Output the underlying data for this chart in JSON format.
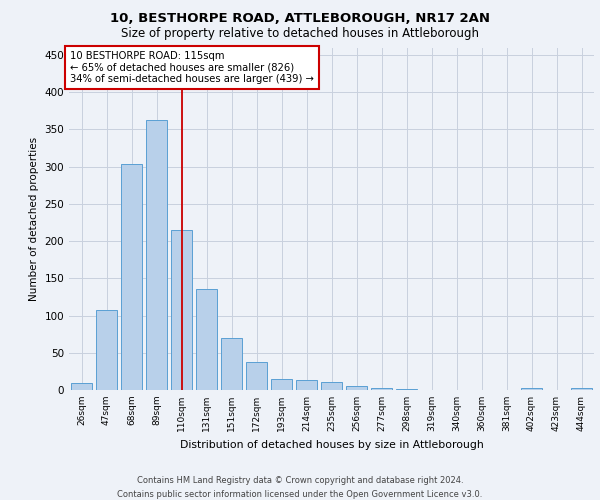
{
  "title_line1": "10, BESTHORPE ROAD, ATTLEBOROUGH, NR17 2AN",
  "title_line2": "Size of property relative to detached houses in Attleborough",
  "xlabel": "Distribution of detached houses by size in Attleborough",
  "ylabel": "Number of detached properties",
  "categories": [
    "26sqm",
    "47sqm",
    "68sqm",
    "89sqm",
    "110sqm",
    "131sqm",
    "151sqm",
    "172sqm",
    "193sqm",
    "214sqm",
    "235sqm",
    "256sqm",
    "277sqm",
    "298sqm",
    "319sqm",
    "340sqm",
    "360sqm",
    "381sqm",
    "402sqm",
    "423sqm",
    "444sqm"
  ],
  "values": [
    10,
    107,
    303,
    362,
    215,
    136,
    70,
    38,
    15,
    13,
    11,
    5,
    3,
    1,
    0,
    0,
    0,
    0,
    3,
    0,
    3
  ],
  "bar_color": "#b8d0ea",
  "bar_edge_color": "#5a9fd4",
  "vline_color": "#cc0000",
  "vline_x": 4,
  "annotation_text": "10 BESTHORPE ROAD: 115sqm\n← 65% of detached houses are smaller (826)\n34% of semi-detached houses are larger (439) →",
  "annotation_box_color": "white",
  "annotation_box_edge": "#cc0000",
  "ylim": [
    0,
    460
  ],
  "yticks": [
    0,
    50,
    100,
    150,
    200,
    250,
    300,
    350,
    400,
    450
  ],
  "footer_line1": "Contains HM Land Registry data © Crown copyright and database right 2024.",
  "footer_line2": "Contains public sector information licensed under the Open Government Licence v3.0.",
  "background_color": "#eef2f8",
  "grid_color": "#c8d0de",
  "title_fontsize": 9.5,
  "subtitle_fontsize": 8.5
}
